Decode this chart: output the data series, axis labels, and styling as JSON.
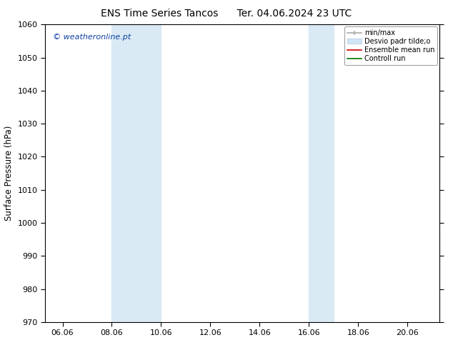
{
  "title_left": "ENS Time Series Tancos",
  "title_right": "Ter. 04.06.2024 23 UTC",
  "ylabel": "Surface Pressure (hPa)",
  "ylim": [
    970,
    1060
  ],
  "yticks": [
    970,
    980,
    990,
    1000,
    1010,
    1020,
    1030,
    1040,
    1050,
    1060
  ],
  "xlim": [
    5.3,
    21.3
  ],
  "xtick_positions": [
    6,
    8,
    10,
    12,
    14,
    16,
    18,
    20
  ],
  "xtick_labels": [
    "06.06",
    "08.06",
    "10.06",
    "12.06",
    "14.06",
    "16.06",
    "18.06",
    "20.06"
  ],
  "shaded_bands": [
    {
      "x_start": 8.0,
      "x_end": 10.0
    },
    {
      "x_start": 16.0,
      "x_end": 17.0
    }
  ],
  "shaded_color": "#daeaf5",
  "background_color": "#ffffff",
  "watermark_text": "© weatheronline.pt",
  "watermark_color": "#1040a0",
  "legend_labels": [
    "min/max",
    "Desvio padr tilde;o",
    "Ensemble mean run",
    "Controll run"
  ],
  "legend_colors": [
    "#aaaaaa",
    "#d0e5f5",
    "#cc0000",
    "#007700"
  ],
  "tick_label_size": 8,
  "axis_label_size": 8.5,
  "title_size": 10,
  "watermark_size": 8
}
